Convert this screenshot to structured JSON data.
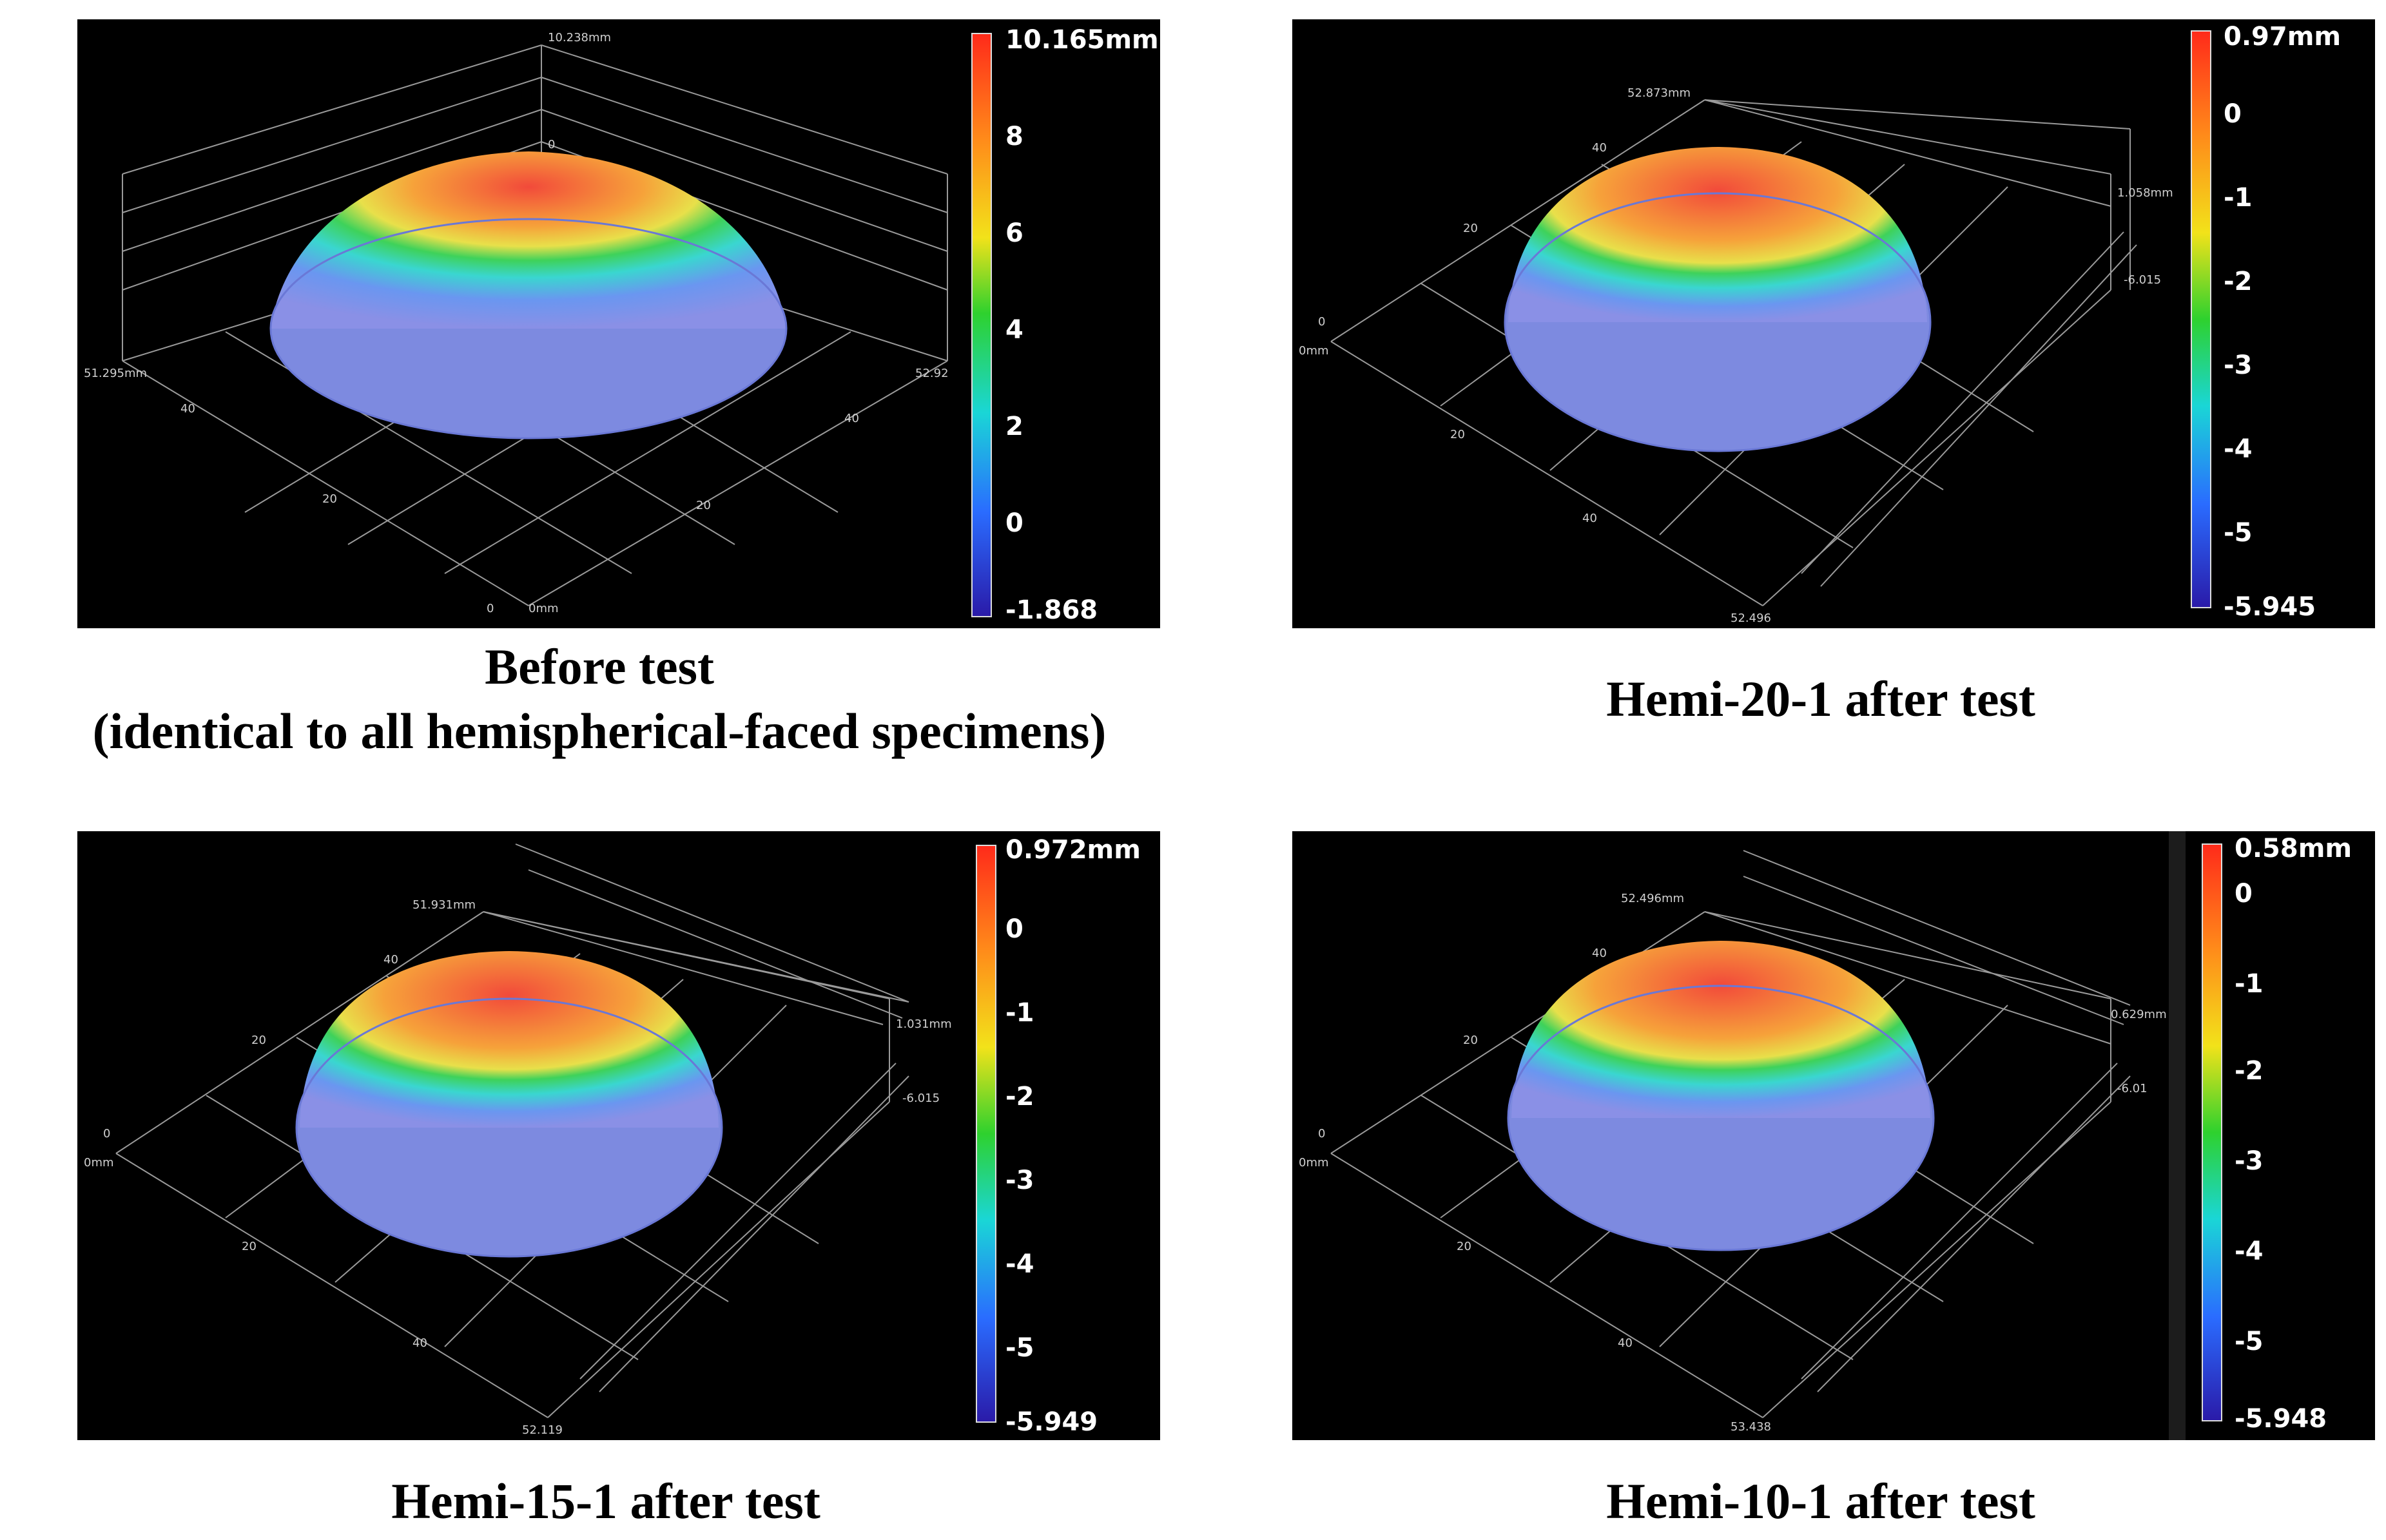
{
  "panels": [
    {
      "caption_line1": "Before test",
      "caption_line2": "(identical to all hemispherical-faced specimens)",
      "colorbar_labels": [
        "10.165mm",
        "8",
        "6",
        "4",
        "2",
        "0",
        "-1.868"
      ],
      "axis_labels": [
        "10.238mm",
        "0",
        "51.295mm",
        "52.92",
        "40",
        "40",
        "20",
        "20",
        "0",
        "0mm"
      ]
    },
    {
      "caption_line1": "Hemi-20-1 after test",
      "colorbar_labels": [
        "0.97mm",
        "0",
        "-1",
        "-2",
        "-3",
        "-4",
        "-5",
        "-5.945"
      ],
      "axis_labels": [
        "52.873mm",
        "40",
        "20",
        "0",
        "0mm",
        "20",
        "40",
        "52.496",
        "1.058mm",
        "-6.015"
      ]
    },
    {
      "caption_line1": "Hemi-15-1 after test",
      "colorbar_labels": [
        "0.972mm",
        "0",
        "-1",
        "-2",
        "-3",
        "-4",
        "-5",
        "-5.949"
      ],
      "axis_labels": [
        "51.931mm",
        "40",
        "20",
        "0",
        "0mm",
        "20",
        "40",
        "52.119",
        "1.031mm",
        "-6.015"
      ]
    },
    {
      "caption_line1": "Hemi-10-1 after test",
      "colorbar_labels": [
        "0.58mm",
        "0",
        "-1",
        "-2",
        "-3",
        "-4",
        "-5",
        "-5.948"
      ],
      "axis_labels": [
        "52.496mm",
        "40",
        "20",
        "0",
        "0mm",
        "20",
        "40",
        "53.438",
        "0.629mm",
        "-6.01"
      ]
    }
  ]
}
